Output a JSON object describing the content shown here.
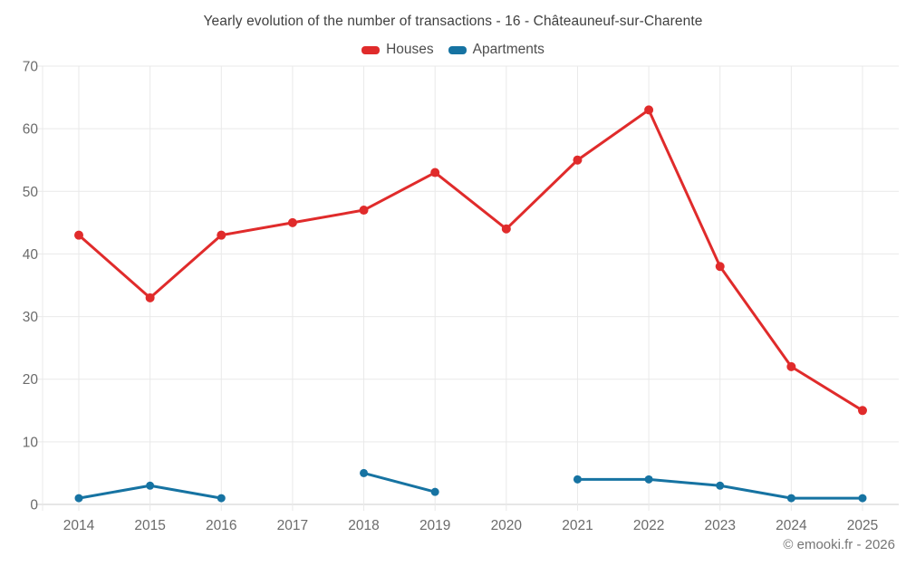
{
  "chart_data": {
    "type": "line",
    "title": "Yearly evolution of the number of transactions - 16 - Châteauneuf-sur-Charente",
    "x": [
      2014,
      2015,
      2016,
      2017,
      2018,
      2019,
      2020,
      2021,
      2022,
      2023,
      2024,
      2025
    ],
    "series": [
      {
        "name": "Houses",
        "color": "#e02b2b",
        "marker_radius": 5,
        "values": [
          43,
          33,
          43,
          45,
          47,
          53,
          44,
          55,
          63,
          38,
          22,
          15
        ]
      },
      {
        "name": "Apartments",
        "color": "#1673a2",
        "marker_radius": 4.5,
        "values": [
          1,
          3,
          1,
          null,
          5,
          2,
          null,
          4,
          4,
          3,
          1,
          1
        ]
      }
    ],
    "xlabel": "",
    "ylabel": "",
    "ylim": [
      0,
      70
    ],
    "yticks": [
      0,
      10,
      20,
      30,
      40,
      50,
      60,
      70
    ],
    "grid": true,
    "legend_position": "top"
  },
  "footer": {
    "copyright": "© emooki.fr - 2026"
  },
  "colors": {
    "background": "#ffffff",
    "grid": "#e9e9e9",
    "axis": "#cccccc",
    "title_text": "#404040",
    "tick_text": "#6b6b6b",
    "legend_text": "#4d4d4d",
    "copyright_text": "#757575"
  }
}
